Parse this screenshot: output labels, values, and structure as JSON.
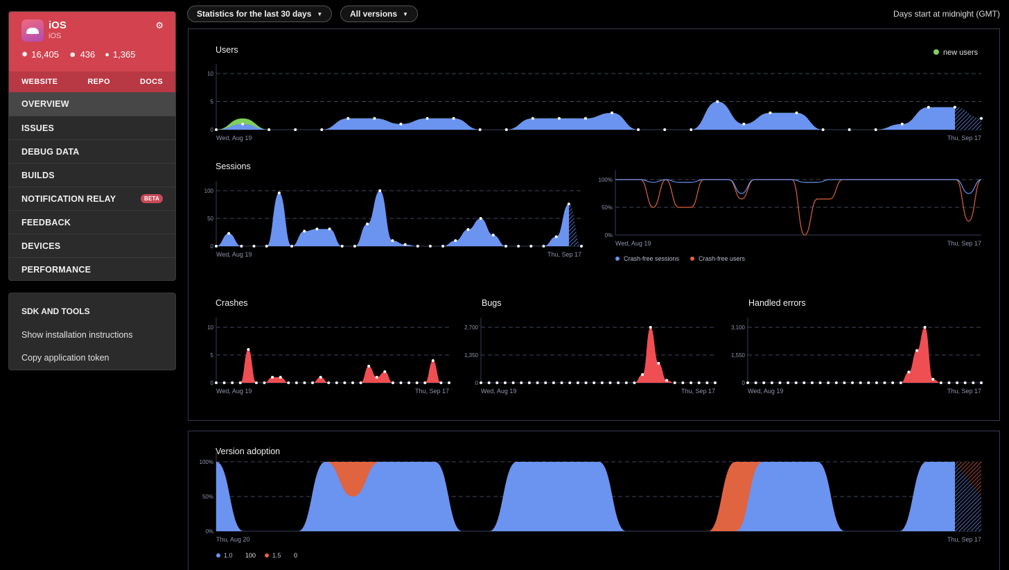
{
  "app": {
    "name": "iOS",
    "platform": "iOS",
    "settings_icon": "gear-icon",
    "stats": [
      {
        "icon": "bug-icon",
        "value": "16,405"
      },
      {
        "icon": "user-icon",
        "value": "436"
      },
      {
        "icon": "alert-icon",
        "value": "1,365"
      }
    ],
    "links": [
      "WEBSITE",
      "REPO",
      "DOCS"
    ]
  },
  "nav": {
    "items": [
      "OVERVIEW",
      "ISSUES",
      "DEBUG DATA",
      "BUILDS",
      "NOTIFICATION RELAY",
      "FEEDBACK",
      "DEVICES",
      "PERFORMANCE"
    ],
    "active": "OVERVIEW",
    "beta_label": "BETA"
  },
  "tools": {
    "title": "SDK AND TOOLS",
    "items": [
      "Show installation instructions",
      "Copy application token"
    ]
  },
  "toolbar": {
    "period": "Statistics for the last 30 days",
    "versions": "All versions",
    "days_note": "Days start at midnight (GMT)"
  },
  "colors": {
    "blue": "#6b93f0",
    "green": "#7ed05a",
    "red": "#ef4f52",
    "orange": "#e0643f"
  },
  "chart_data": [
    {
      "id": "users",
      "type": "area",
      "title": "Users",
      "legend": [
        "new users"
      ],
      "x_start": "Wed, Aug 19",
      "x_end": "Thu, Sep 17",
      "yticks": [
        "10",
        "5",
        "0"
      ],
      "ylim": [
        0,
        10
      ],
      "series": [
        {
          "name": "",
          "color": "#6b93f0",
          "values": [
            0,
            1,
            0,
            0,
            0,
            2,
            2,
            1,
            2,
            2,
            0,
            0,
            2,
            2,
            2,
            3,
            0,
            0,
            0,
            5,
            1,
            3,
            3,
            0,
            0,
            0,
            1,
            4,
            4,
            2
          ]
        },
        {
          "name": "new users",
          "color": "#7ed05a",
          "values": [
            0,
            2,
            0,
            0,
            0,
            2,
            2,
            1,
            2,
            2,
            0,
            0,
            2,
            2,
            2,
            3,
            0,
            0,
            0,
            5,
            1,
            3,
            3,
            0,
            0,
            0,
            1,
            4,
            4,
            2
          ]
        }
      ]
    },
    {
      "id": "sessions",
      "type": "area",
      "title": "Sessions",
      "x_start": "Wed, Aug 19",
      "x_end": "Thu, Sep 17",
      "yticks": [
        "100",
        "50",
        "0"
      ],
      "ylim": [
        0,
        100
      ],
      "series": [
        {
          "name": "",
          "color": "#6b93f0",
          "values": [
            0,
            23,
            0,
            0,
            0,
            96,
            0,
            27,
            31,
            31,
            0,
            0,
            40,
            100,
            10,
            3,
            0,
            0,
            0,
            10,
            30,
            50,
            20,
            0,
            0,
            0,
            0,
            17,
            76,
            0
          ]
        }
      ]
    },
    {
      "id": "crash-free",
      "type": "line",
      "x_start": "Wed, Aug 19",
      "x_end": "Thu, Sep 17",
      "yticks": [
        "100%",
        "50%",
        "0%"
      ],
      "ylim": [
        0,
        100
      ],
      "legend": [
        "Crash-free sessions",
        "Crash-free users"
      ],
      "series": [
        {
          "name": "Crash-free sessions",
          "color": "#6b93f0",
          "values": [
            100,
            100,
            100,
            95,
            100,
            95,
            95,
            100,
            100,
            100,
            75,
            100,
            100,
            100,
            100,
            95,
            95,
            100,
            100,
            100,
            100,
            100,
            100,
            100,
            100,
            100,
            100,
            100,
            75,
            100
          ]
        },
        {
          "name": "Crash-free users",
          "color": "#e0643f",
          "values": [
            100,
            100,
            100,
            50,
            100,
            50,
            50,
            100,
            100,
            100,
            65,
            100,
            100,
            100,
            100,
            0,
            65,
            65,
            100,
            100,
            100,
            100,
            100,
            100,
            100,
            100,
            100,
            100,
            25,
            100
          ]
        }
      ]
    },
    {
      "id": "crashes",
      "type": "area",
      "title": "Crashes",
      "x_start": "Wed, Aug 19",
      "x_end": "Thu, Sep 17",
      "yticks": [
        "10",
        "5",
        "0"
      ],
      "ylim": [
        0,
        10
      ],
      "series": [
        {
          "name": "",
          "color": "#ef4f52",
          "values": [
            0,
            0,
            0,
            0,
            6,
            0,
            0,
            1,
            1,
            0,
            0,
            0,
            0,
            1,
            0,
            0,
            0,
            0,
            0,
            3,
            1,
            2,
            0,
            0,
            0,
            0,
            0,
            4,
            0,
            0
          ]
        }
      ]
    },
    {
      "id": "bugs",
      "type": "area",
      "title": "Bugs",
      "x_start": "Wed, Aug 19",
      "x_end": "Thu, Sep 17",
      "yticks": [
        "2,700",
        "1,350",
        "0"
      ],
      "ylim": [
        0,
        2700
      ],
      "series": [
        {
          "name": "",
          "color": "#ef4f52",
          "values": [
            0,
            0,
            0,
            0,
            0,
            0,
            0,
            0,
            0,
            0,
            0,
            0,
            0,
            0,
            0,
            0,
            0,
            0,
            0,
            0,
            400,
            2700,
            950,
            120,
            0,
            0,
            0,
            0,
            0,
            0
          ]
        }
      ]
    },
    {
      "id": "handled-errors",
      "type": "area",
      "title": "Handled errors",
      "x_start": "Wed, Aug 19",
      "x_end": "Thu, Sep 17",
      "yticks": [
        "3,100",
        "1,550",
        "0"
      ],
      "ylim": [
        0,
        3100
      ],
      "series": [
        {
          "name": "",
          "color": "#ef4f52",
          "values": [
            0,
            0,
            0,
            0,
            0,
            0,
            0,
            0,
            0,
            0,
            0,
            0,
            0,
            0,
            0,
            0,
            0,
            0,
            0,
            0,
            600,
            1800,
            3100,
            200,
            0,
            0,
            0,
            0,
            0,
            0
          ]
        }
      ]
    },
    {
      "id": "version-adoption",
      "type": "area",
      "title": "Version adoption",
      "x_start": "Thu, Aug 20",
      "x_end": "Thu, Sep 17",
      "yticks": [
        "100%",
        "50%",
        "0%"
      ],
      "ylim": [
        0,
        100
      ],
      "legend": [
        {
          "name": "1.0",
          "value": "100"
        },
        {
          "name": "1.5",
          "value": "0"
        }
      ],
      "series": [
        {
          "name": "1.0",
          "color": "#6b93f0",
          "values": [
            100,
            0,
            0,
            0,
            100,
            50,
            100,
            100,
            100,
            0,
            0,
            100,
            100,
            100,
            100,
            0,
            0,
            0,
            0,
            0,
            100,
            100,
            100,
            0,
            0,
            0,
            100,
            100,
            100
          ]
        },
        {
          "name": "1.5",
          "color": "#e0643f",
          "values": [
            100,
            0,
            0,
            0,
            100,
            100,
            100,
            100,
            100,
            0,
            0,
            100,
            100,
            100,
            100,
            0,
            0,
            0,
            0,
            100,
            100,
            100,
            100,
            0,
            0,
            0,
            100,
            100,
            100
          ]
        }
      ]
    }
  ]
}
